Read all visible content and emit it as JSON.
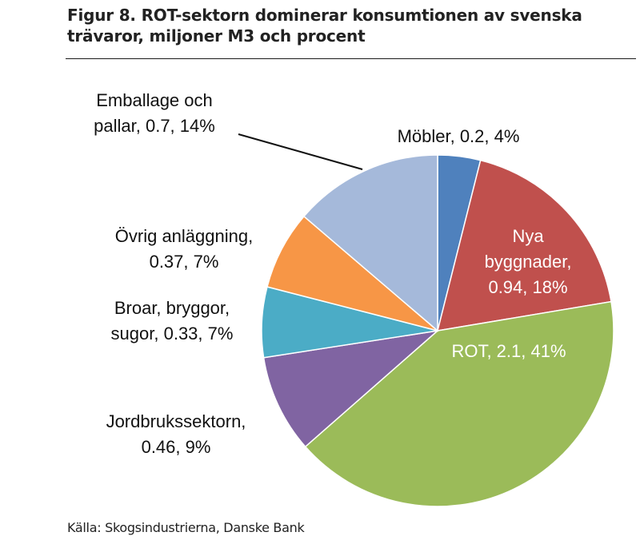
{
  "title": {
    "line1": "Figur 8. ROT-sektorn dominerar konsumtionen av svenska",
    "line2": "trävaror, miljoner M3 och procent"
  },
  "source": "Källa: Skogsindustrierna, Danske Bank",
  "chart_data": {
    "type": "pie",
    "title": "Figur 8. ROT-sektorn dominerar konsumtionen av svenska trävaror, miljoner M3 och procent",
    "unit": "miljoner M3",
    "slices": [
      {
        "name": "Möbler",
        "value": 0.2,
        "percent": 4,
        "color": "#4f81bd",
        "label_lines": [
          "Möbler, 0.2, 4%"
        ],
        "label_inside": false
      },
      {
        "name": "Nya byggnader",
        "value": 0.94,
        "percent": 18,
        "color": "#c0504d",
        "label_lines": [
          "Nya",
          "byggnader,",
          "0.94, 18%"
        ],
        "label_inside": true
      },
      {
        "name": "ROT",
        "value": 2.1,
        "percent": 41,
        "color": "#9bbb59",
        "label_lines": [
          "ROT, 2.1, 41%"
        ],
        "label_inside": true
      },
      {
        "name": "Jordbrukssektorn",
        "value": 0.46,
        "percent": 9,
        "color": "#8064a2",
        "label_lines": [
          "Jordbrukssektorn,",
          "0.46, 9%"
        ],
        "label_inside": false
      },
      {
        "name": "Broar, bryggor, sugor",
        "value": 0.33,
        "percent": 7,
        "color": "#4bacc6",
        "label_lines": [
          "Broar, bryggor,",
          "sugor, 0.33, 7%"
        ],
        "label_inside": false
      },
      {
        "name": "Övrig anläggning",
        "value": 0.37,
        "percent": 7,
        "color": "#f79646",
        "label_lines": [
          "Övrig anläggning,",
          "0.37, 7%"
        ],
        "label_inside": false
      },
      {
        "name": "Emballage och pallar",
        "value": 0.7,
        "percent": 14,
        "color": "#a5b9da",
        "label_lines": [
          "Emballage och",
          "pallar, 0.7, 14%"
        ],
        "label_inside": false
      }
    ]
  }
}
